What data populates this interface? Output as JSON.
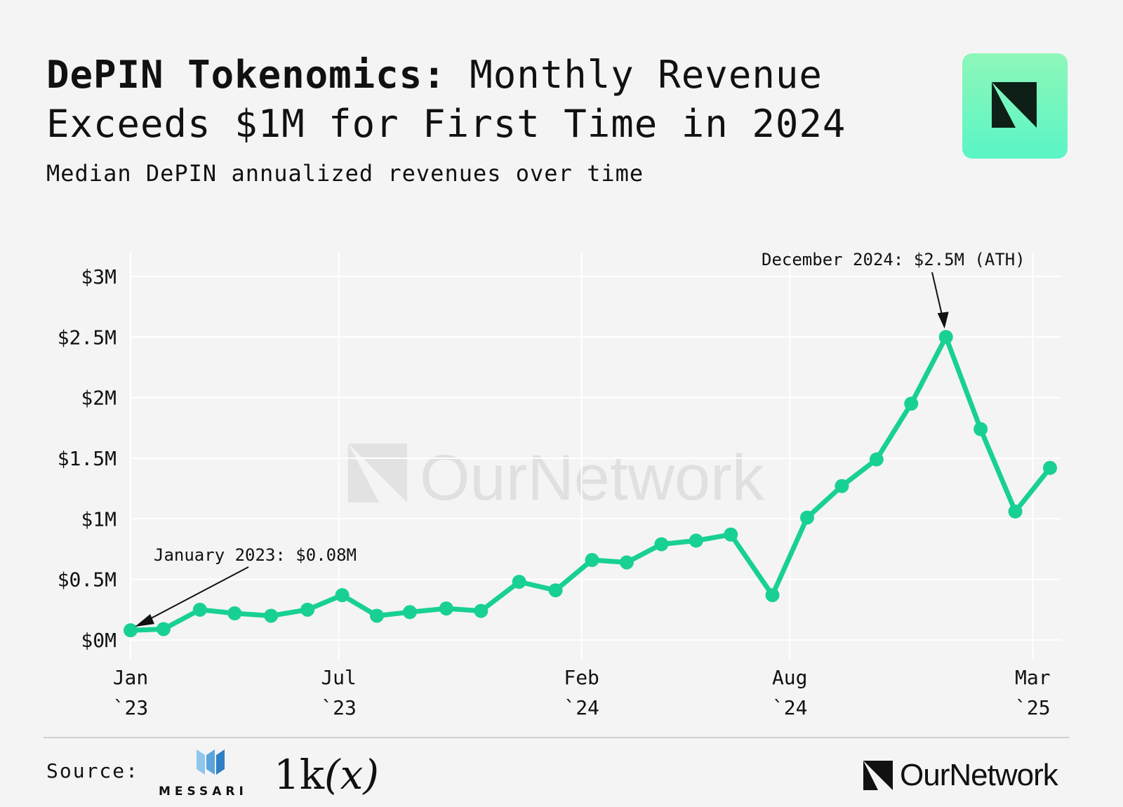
{
  "header": {
    "title_lead": "DePIN Tokenomics:",
    "title_rest": "Monthly Revenue Exceeds $1M for First Time in 2024",
    "subtitle": "Median DePIN annualized revenues over time"
  },
  "branding": {
    "badge_icon": "ournetwork-logo-icon",
    "accent_color": "#19d094",
    "badge_gradient": [
      "#8ef7b8",
      "#5af5c6"
    ]
  },
  "chart_data": {
    "type": "line",
    "title": "DePIN Tokenomics: Monthly Revenue Exceeds $1M for First Time in 2024",
    "subtitle": "Median DePIN annualized revenues over time",
    "xlabel": "",
    "ylabel": "",
    "x_start": "2023-01",
    "x_end": "2025-03",
    "ylim": [
      0,
      3.2
    ],
    "grid": true,
    "series": [
      {
        "name": "Median DePIN annualized revenue ($M)",
        "color": "#19d094",
        "points": [
          {
            "t": 0.0,
            "v": 0.08
          },
          {
            "t": 0.95,
            "v": 0.09
          },
          {
            "t": 2.0,
            "v": 0.25
          },
          {
            "t": 3.0,
            "v": 0.22
          },
          {
            "t": 4.05,
            "v": 0.2
          },
          {
            "t": 5.1,
            "v": 0.25
          },
          {
            "t": 6.1,
            "v": 0.37
          },
          {
            "t": 7.1,
            "v": 0.2
          },
          {
            "t": 8.05,
            "v": 0.23
          },
          {
            "t": 9.1,
            "v": 0.26
          },
          {
            "t": 10.1,
            "v": 0.24
          },
          {
            "t": 11.2,
            "v": 0.48
          },
          {
            "t": 12.25,
            "v": 0.41
          },
          {
            "t": 13.3,
            "v": 0.66
          },
          {
            "t": 14.3,
            "v": 0.64
          },
          {
            "t": 15.3,
            "v": 0.79
          },
          {
            "t": 16.3,
            "v": 0.82
          },
          {
            "t": 17.3,
            "v": 0.87
          },
          {
            "t": 18.5,
            "v": 0.37
          },
          {
            "t": 19.5,
            "v": 1.01
          },
          {
            "t": 20.5,
            "v": 1.27
          },
          {
            "t": 21.5,
            "v": 1.49
          },
          {
            "t": 22.5,
            "v": 1.95
          },
          {
            "t": 23.5,
            "v": 2.5
          },
          {
            "t": 24.5,
            "v": 1.74
          },
          {
            "t": 25.5,
            "v": 1.06
          },
          {
            "t": 26.5,
            "v": 1.42
          }
        ]
      }
    ],
    "y_ticks": [
      {
        "v": 0,
        "label": "$0M"
      },
      {
        "v": 0.5,
        "label": "$0.5M"
      },
      {
        "v": 1,
        "label": "$1M"
      },
      {
        "v": 1.5,
        "label": "$1.5M"
      },
      {
        "v": 2,
        "label": "$2M"
      },
      {
        "v": 2.5,
        "label": "$2.5M"
      },
      {
        "v": 3,
        "label": "$3M"
      }
    ],
    "x_ticks": [
      {
        "t": 0,
        "line1": "Jan",
        "line2": "`23"
      },
      {
        "t": 6,
        "line1": "Jul",
        "line2": "`23"
      },
      {
        "t": 13,
        "line1": "Feb",
        "line2": "`24"
      },
      {
        "t": 19,
        "line1": "Aug",
        "line2": "`24"
      },
      {
        "t": 26,
        "line1": "Mar",
        "line2": "`25"
      }
    ],
    "annotations": [
      {
        "text": "January 2023: $0.08M",
        "point_index": 0
      },
      {
        "text": "December 2024: $2.5M (ATH)",
        "point_index": 23
      }
    ],
    "watermark": "OurNetwork"
  },
  "footer": {
    "source_label": "Source:",
    "messari_text": "MESSARI",
    "onek_text": "1k",
    "onek_x": "(x)",
    "brand_text": "OurNetwork"
  }
}
